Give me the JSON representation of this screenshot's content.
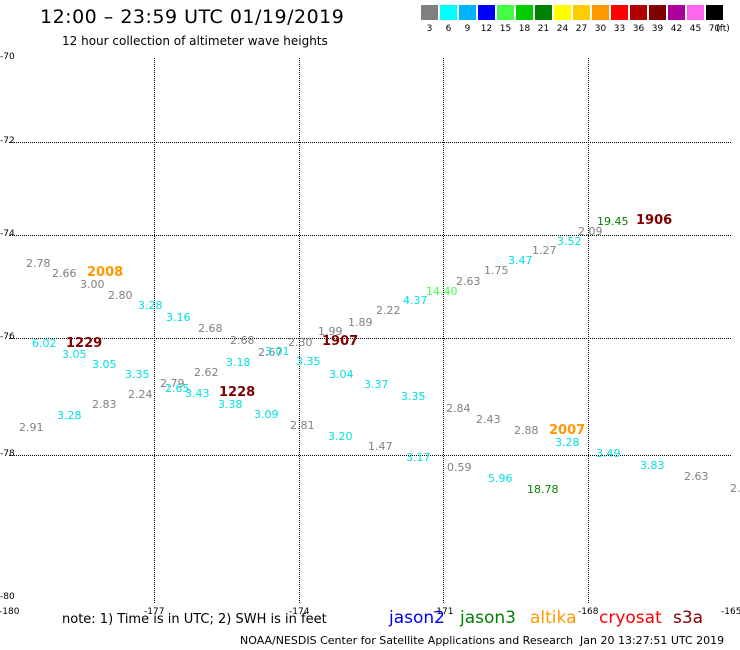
{
  "header": {
    "title": "12:00 – 23:59 UTC 01/19/2019",
    "subtitle": "12 hour collection of altimeter wave heights"
  },
  "legend": {
    "unit": "(ft)",
    "items": [
      {
        "label": "3",
        "color": "#808080"
      },
      {
        "label": "6",
        "color": "#00ffff"
      },
      {
        "label": "9",
        "color": "#00b4ff"
      },
      {
        "label": "12",
        "color": "#0000ff"
      },
      {
        "label": "15",
        "color": "#44ff44"
      },
      {
        "label": "18",
        "color": "#00cc00"
      },
      {
        "label": "21",
        "color": "#008000"
      },
      {
        "label": "24",
        "color": "#ffff00"
      },
      {
        "label": "27",
        "color": "#ffcc00"
      },
      {
        "label": "30",
        "color": "#ff9900"
      },
      {
        "label": "33",
        "color": "#ff0000"
      },
      {
        "label": "36",
        "color": "#b00000"
      },
      {
        "label": "39",
        "color": "#800000"
      },
      {
        "label": "42",
        "color": "#aa0099"
      },
      {
        "label": "45",
        "color": "#ff66ee"
      },
      {
        "label": "70",
        "color": "#000000"
      }
    ]
  },
  "axes": {
    "lat_labels": [
      "-70",
      "-72",
      "-74",
      "-76",
      "-78",
      "-80"
    ],
    "lon_labels": [
      "-180",
      "-177",
      "-174",
      "-171",
      "-168",
      "-165"
    ]
  },
  "observations": [
    {
      "text": "2.78",
      "color": "#808080"
    },
    {
      "text": "2.66",
      "color": "#808080"
    },
    {
      "text": "3.00",
      "color": "#808080"
    },
    {
      "text": "2.80",
      "color": "#808080"
    },
    {
      "text": "3.28",
      "color": "#00e0e0"
    },
    {
      "text": "3.16",
      "color": "#00e0e0"
    },
    {
      "text": "2.68",
      "color": "#808080"
    },
    {
      "text": "2.68",
      "color": "#808080"
    },
    {
      "text": "2.67",
      "color": "#808080"
    },
    {
      "text": "3.01",
      "color": "#00e0e0"
    },
    {
      "text": "2.30",
      "color": "#808080"
    },
    {
      "text": "1.99",
      "color": "#808080"
    },
    {
      "text": "1.89",
      "color": "#808080"
    },
    {
      "text": "2.22",
      "color": "#808080"
    },
    {
      "text": "4.37",
      "color": "#00e0e0"
    },
    {
      "text": "14.40",
      "color": "#44ff44"
    },
    {
      "text": "2.63",
      "color": "#808080"
    },
    {
      "text": "1.75",
      "color": "#808080"
    },
    {
      "text": "3.47",
      "color": "#00e0e0"
    },
    {
      "text": "1.27",
      "color": "#808080"
    },
    {
      "text": "3.52",
      "color": "#00e0e0"
    },
    {
      "text": "2.09",
      "color": "#808080"
    },
    {
      "text": "19.45",
      "color": "#008000"
    },
    {
      "text": "6.02",
      "color": "#00e0e0"
    },
    {
      "text": "3.05",
      "color": "#00e0e0"
    },
    {
      "text": "3.05",
      "color": "#00e0e0"
    },
    {
      "text": "3.35",
      "color": "#00e0e0"
    },
    {
      "text": "2.24",
      "color": "#808080"
    },
    {
      "text": "2.79",
      "color": "#808080"
    },
    {
      "text": "2.65",
      "color": "#00e0e0"
    },
    {
      "text": "3.43",
      "color": "#00e0e0"
    },
    {
      "text": "2.62",
      "color": "#808080"
    },
    {
      "text": "3.18",
      "color": "#00e0e0"
    },
    {
      "text": "3.35",
      "color": "#00e0e0"
    },
    {
      "text": "3.38",
      "color": "#00e0e0"
    },
    {
      "text": "3.04",
      "color": "#00e0e0"
    },
    {
      "text": "3.09",
      "color": "#00e0e0"
    },
    {
      "text": "3.37",
      "color": "#00e0e0"
    },
    {
      "text": "3.35",
      "color": "#00e0e0"
    },
    {
      "text": "2.91",
      "color": "#808080"
    },
    {
      "text": "3.28",
      "color": "#00e0e0"
    },
    {
      "text": "2.83",
      "color": "#808080"
    },
    {
      "text": "2.81",
      "color": "#808080"
    },
    {
      "text": "3.20",
      "color": "#00e0e0"
    },
    {
      "text": "1.47",
      "color": "#808080"
    },
    {
      "text": "3.17",
      "color": "#00e0e0"
    },
    {
      "text": "2.84",
      "color": "#808080"
    },
    {
      "text": "2.43",
      "color": "#808080"
    },
    {
      "text": "0.59",
      "color": "#808080"
    },
    {
      "text": "2.88",
      "color": "#808080"
    },
    {
      "text": "5.96",
      "color": "#00e0e0"
    },
    {
      "text": "18.78",
      "color": "#008000"
    },
    {
      "text": "3.28",
      "color": "#00e0e0"
    },
    {
      "text": "3.49",
      "color": "#00e0e0"
    },
    {
      "text": "3.83",
      "color": "#00e0e0"
    },
    {
      "text": "2.63",
      "color": "#808080"
    },
    {
      "text": "2.",
      "color": "#808080"
    }
  ],
  "time_labels": [
    {
      "text": "2008",
      "color": "#ff9900"
    },
    {
      "text": "1229",
      "color": "#800000"
    },
    {
      "text": "1907",
      "color": "#800000"
    },
    {
      "text": "1228",
      "color": "#800000"
    },
    {
      "text": "1906",
      "color": "#800000"
    },
    {
      "text": "2007",
      "color": "#ff9900"
    }
  ],
  "footer": {
    "note": "note:  1) Time is in UTC;  2) SWH is in feet",
    "satellites": [
      {
        "name": "jason2",
        "color": "#0000ff"
      },
      {
        "name": "jason3",
        "color": "#008000"
      },
      {
        "name": "altika",
        "color": "#ff9900"
      },
      {
        "name": "cryosat",
        "color": "#ff0000"
      },
      {
        "name": "s3a",
        "color": "#800000"
      }
    ],
    "credit": "NOAA/NESDIS Center for Satellite Applications and Research",
    "timestamp": "Jan 20 13:27:51 UTC 2019"
  }
}
